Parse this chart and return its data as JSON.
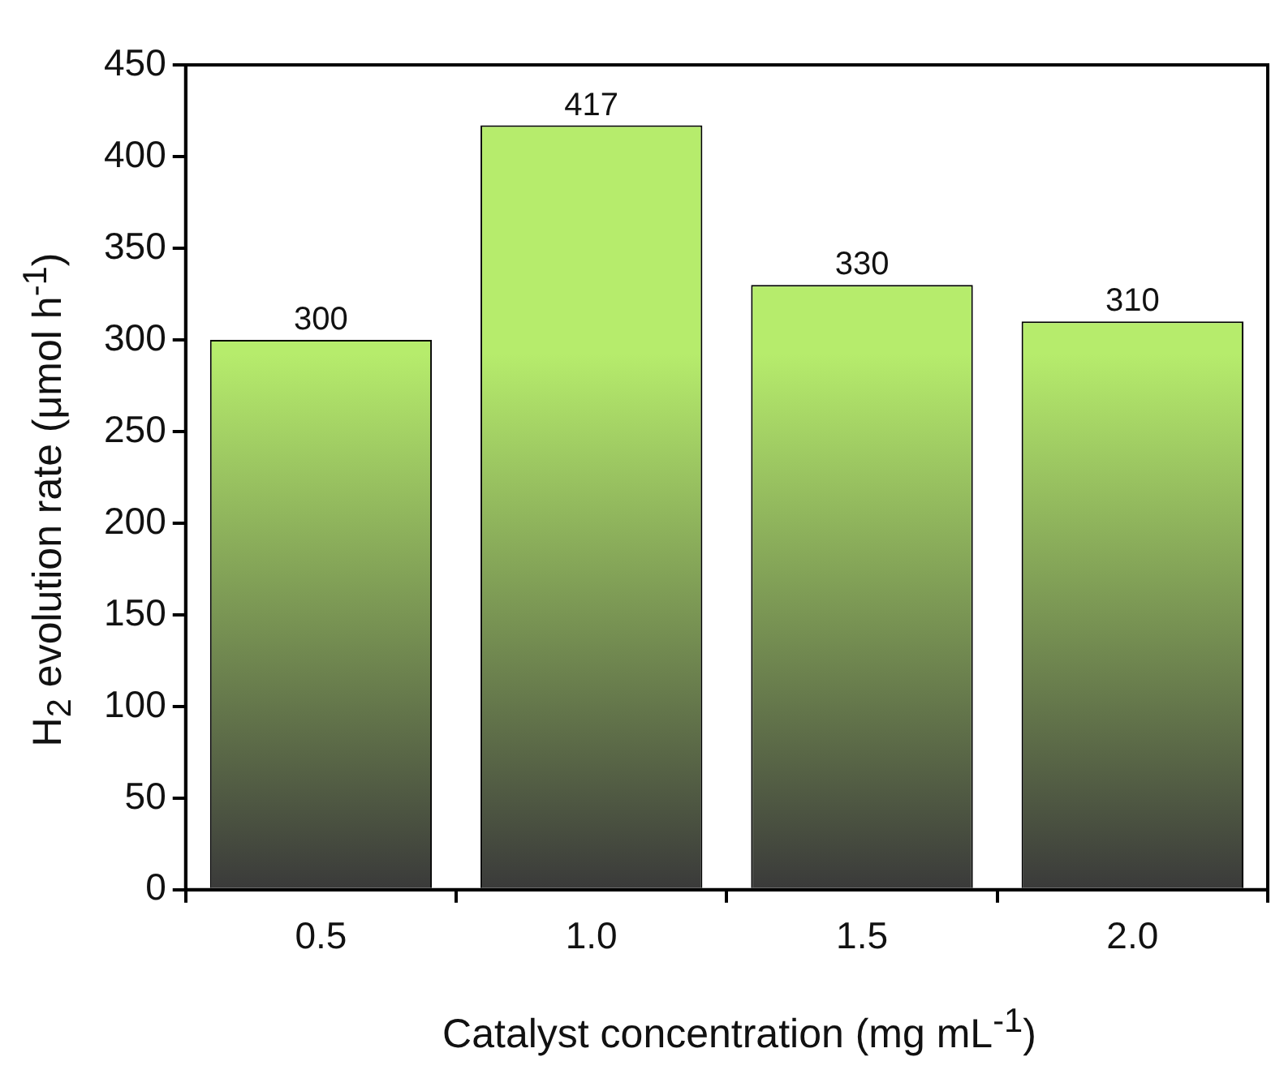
{
  "chart_data": {
    "type": "bar",
    "xlabel": "Catalyst concentration (mg mL$^{-1}$)",
    "ylabel": "H$_{2}$ evolution rate (μmol h$^{-1}$)",
    "categories": [
      "0.5",
      "1.0",
      "1.5",
      "2.0"
    ],
    "values": [
      300,
      417,
      330,
      310
    ],
    "color": "#b6ec6c",
    "ylim": [
      0,
      450
    ],
    "yticks": [
      0,
      50,
      100,
      150,
      200,
      250,
      300,
      350,
      400,
      450
    ],
    "grid": false,
    "legend": false,
    "data_labels": true
  }
}
